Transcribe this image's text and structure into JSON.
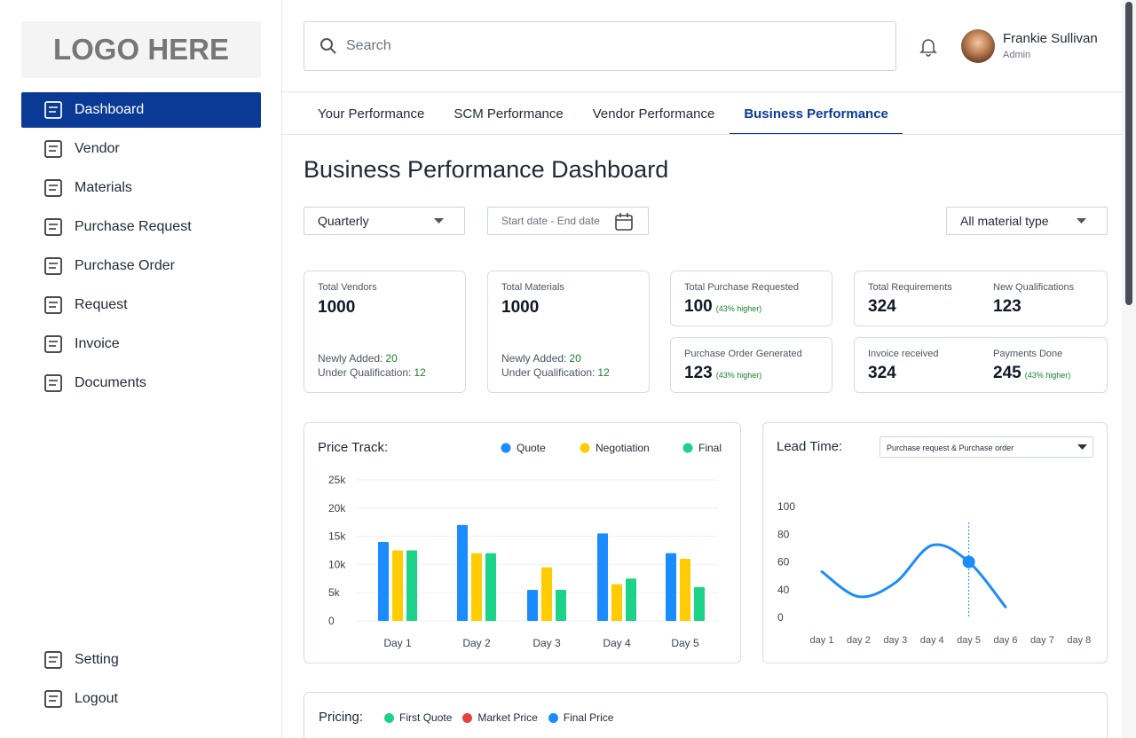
{
  "sidebar": {
    "logo": "LOGO HERE",
    "nav": [
      "Dashboard",
      "Vendor",
      "Materials",
      "Purchase Request",
      "Purchase Order",
      "Request",
      "Invoice",
      "Documents"
    ],
    "active": "Dashboard",
    "bottom": [
      "Setting",
      "Logout"
    ]
  },
  "header": {
    "search_placeholder": "Search",
    "user_name": "Frankie Sullivan",
    "user_role": "Admin"
  },
  "tabs": {
    "items": [
      "Your Performance",
      "SCM Performance",
      "Vendor Performance",
      "Business Performance"
    ],
    "active": "Business Performance"
  },
  "page_title": "Business Performance Dashboard",
  "filters": {
    "period": "Quarterly",
    "date_range": "Start date - End date",
    "material": "All material type"
  },
  "cards": [
    {
      "label": "Total Vendors",
      "value": 1000,
      "details": [
        {
          "label": "Newly Added:",
          "value": 20
        },
        {
          "label": "Under Qualification:",
          "value": 12
        }
      ]
    },
    {
      "label": "Total Materials",
      "value": 1000,
      "details": [
        {
          "label": "Newly Added:",
          "value": 20
        },
        {
          "label": "Under Qualification:",
          "value": 12
        }
      ]
    }
  ],
  "small_cards": [
    {
      "label": "Total Purchase Requested",
      "value": 100,
      "note": "(43% higher)"
    },
    {
      "label": "Purchase Order Generated",
      "value": 123,
      "note": "(43% higher)"
    }
  ],
  "pair_cards": [
    [
      {
        "label": "Total Requirements",
        "value": 324
      },
      {
        "label": "New Qualifications",
        "value": 123
      }
    ],
    [
      {
        "label": "Invoice received",
        "value": 324
      },
      {
        "label": "Payments Done",
        "value": 245,
        "note": "(43% higher)"
      }
    ]
  ],
  "chart_data": [
    {
      "type": "bar",
      "title": "Price Track:",
      "categories": [
        "Day 1",
        "Day 2",
        "Day 3",
        "Day 4",
        "Day 5"
      ],
      "series": [
        {
          "name": "Quote",
          "color": "#1a8cff",
          "values": [
            14000,
            17000,
            5500,
            15500,
            12000
          ]
        },
        {
          "name": "Negotiation",
          "color": "#ffcc00",
          "values": [
            12500,
            12000,
            9500,
            6500,
            11000
          ]
        },
        {
          "name": "Final",
          "color": "#1dd38a",
          "values": [
            12500,
            12000,
            5500,
            7500,
            6000
          ]
        }
      ],
      "ylim": [
        0,
        25000
      ],
      "yticks": [
        0,
        {
          "value": 5000,
          "label": "5k"
        },
        {
          "value": 10000,
          "label": "10k"
        },
        {
          "value": 15000,
          "label": "15k"
        },
        {
          "value": 20000,
          "label": "20k"
        },
        {
          "value": 25000,
          "label": "25k"
        }
      ],
      "grid": true
    },
    {
      "type": "line",
      "title": "Lead Time:",
      "dropdown": "Purchase request & Purchase order",
      "categories": [
        "day 1",
        "day 2",
        "day 3",
        "day 4",
        "day 5",
        "day 6",
        "day 7",
        "day 8"
      ],
      "series": [
        {
          "name": "Lead Time",
          "color": "#1a8cff",
          "values": [
            53,
            30,
            45,
            72,
            60,
            15,
            null,
            null
          ]
        }
      ],
      "highlight": "day 5",
      "ylim": [
        0,
        100
      ],
      "yticks": [
        0,
        40,
        60,
        80,
        100
      ],
      "grid": false
    }
  ],
  "pricing": {
    "title": "Pricing:",
    "legend": [
      {
        "name": "First Quote",
        "color": "#1dd38a"
      },
      {
        "name": "Market Price",
        "color": "#e84040"
      },
      {
        "name": "Final Price",
        "color": "#1a8cff"
      }
    ]
  }
}
